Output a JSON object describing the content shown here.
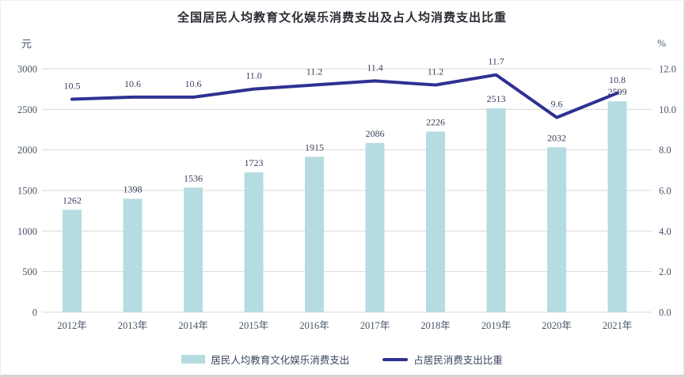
{
  "title": "全国居民人均教育文化娱乐消费支出及占人均消费支出比重",
  "left_axis_unit": "元",
  "right_axis_unit": "%",
  "legend": {
    "bar_label": "居民人均教育文化娱乐消费支出",
    "line_label": "占居民消费支出比重"
  },
  "colors": {
    "bar": "#b5dce0",
    "line": "#2e3192",
    "grid": "#d9d9d9",
    "tick_text": "#4a5568",
    "data_label_text": "#39415c",
    "title_text": "#2b2b33"
  },
  "chart_data": {
    "type": "bar",
    "subtype": "bar-line-combo",
    "title": "全国居民人均教育文化娱乐消费支出及占人均消费支出比重",
    "categories": [
      "2012年",
      "2013年",
      "2014年",
      "2015年",
      "2016年",
      "2017年",
      "2018年",
      "2019年",
      "2020年",
      "2021年"
    ],
    "series": [
      {
        "name": "居民人均教育文化娱乐消费支出",
        "type": "bar",
        "axis": "left",
        "values": [
          1262,
          1398,
          1536,
          1723,
          1915,
          2086,
          2226,
          2513,
          2032,
          2599
        ]
      },
      {
        "name": "占居民消费支出比重",
        "type": "line",
        "axis": "right",
        "values": [
          10.5,
          10.6,
          10.6,
          11.0,
          11.2,
          11.4,
          11.2,
          11.7,
          9.6,
          10.8
        ]
      }
    ],
    "left_axis": {
      "unit": "元",
      "min": 0,
      "max": 3000,
      "step": 500,
      "ticks": [
        "3000",
        "2500",
        "2000",
        "1500",
        "1000",
        "500",
        "0"
      ]
    },
    "right_axis": {
      "unit": "%",
      "min": 0,
      "max": 12,
      "step": 2,
      "ticks": [
        "12.0",
        "10.0",
        "8.0",
        "6.0",
        "4.0",
        "2.0",
        "0.0"
      ]
    },
    "grid": "horizontal-only",
    "legend_position": "bottom",
    "data_labels": "shown"
  }
}
